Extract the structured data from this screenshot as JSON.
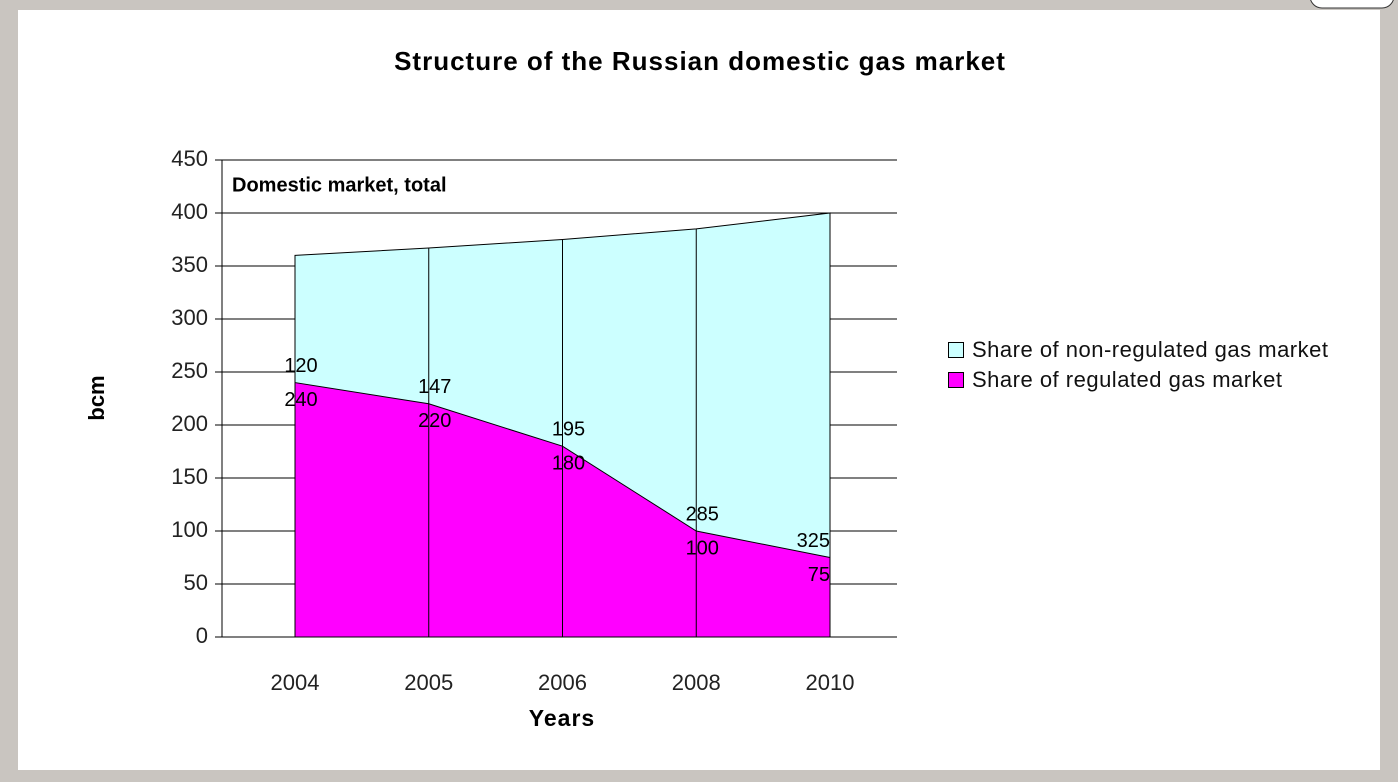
{
  "chart_data": {
    "type": "stacked-area",
    "title": "Structure of the Russian domestic  gas market",
    "annotation": "Domestic market, total",
    "xlabel": "Years",
    "ylabel": "bcm",
    "categories": [
      "2004",
      "2005",
      "2006",
      "2008",
      "2010"
    ],
    "series": [
      {
        "name": "Share of non-regulated gas market",
        "color": "#ccffff",
        "values": [
          120,
          147,
          195,
          285,
          325
        ]
      },
      {
        "name": "Share of regulated gas market",
        "color": "#ff00ff",
        "values": [
          240,
          220,
          180,
          100,
          75
        ]
      }
    ],
    "ylim": [
      0,
      450
    ],
    "yticks": [
      0,
      50,
      100,
      150,
      200,
      250,
      300,
      350,
      400,
      450
    ],
    "grid": true,
    "legend": "right"
  }
}
